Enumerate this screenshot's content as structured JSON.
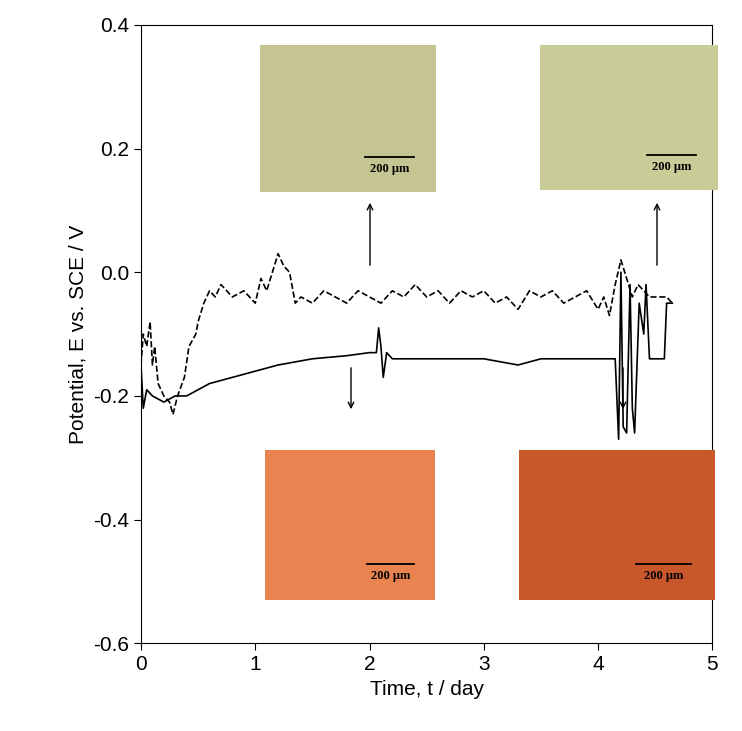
{
  "chart_data": {
    "type": "line",
    "x_label": "Time, t / day",
    "y_label": "Potential, E vs. SCE / V",
    "xlim": [
      0,
      5
    ],
    "xticks": [
      0,
      1,
      2,
      3,
      4,
      5
    ],
    "ylim": [
      -0.6,
      0.4
    ],
    "yticks": [
      -0.6,
      -0.4,
      -0.2,
      {
        "value": 0,
        "label": "0.0"
      },
      0.2,
      0.4
    ],
    "grid": false,
    "series": [
      {
        "type": "line",
        "line_style": "dashed",
        "color": "#000000",
        "x": [
          0.0,
          0.02,
          0.05,
          0.08,
          0.1,
          0.12,
          0.15,
          0.2,
          0.25,
          0.28,
          0.32,
          0.38,
          0.42,
          0.48,
          0.5,
          0.55,
          0.6,
          0.65,
          0.7,
          0.8,
          0.9,
          1.0,
          1.05,
          1.1,
          1.15,
          1.2,
          1.25,
          1.3,
          1.35,
          1.4,
          1.5,
          1.6,
          1.7,
          1.8,
          1.9,
          2.0,
          2.1,
          2.2,
          2.3,
          2.4,
          2.5,
          2.6,
          2.7,
          2.8,
          2.9,
          3.0,
          3.1,
          3.2,
          3.3,
          3.4,
          3.5,
          3.6,
          3.7,
          3.8,
          3.9,
          4.0,
          4.05,
          4.1,
          4.15,
          4.2,
          4.25,
          4.3,
          4.35,
          4.4,
          4.45,
          4.5,
          4.55,
          4.6,
          4.65
        ],
        "values": [
          -0.15,
          -0.1,
          -0.12,
          -0.08,
          -0.15,
          -0.12,
          -0.18,
          -0.2,
          -0.21,
          -0.23,
          -0.2,
          -0.17,
          -0.12,
          -0.1,
          -0.08,
          -0.05,
          -0.03,
          -0.04,
          -0.02,
          -0.04,
          -0.03,
          -0.05,
          -0.01,
          -0.03,
          0.0,
          0.03,
          0.01,
          0.0,
          -0.05,
          -0.04,
          -0.05,
          -0.03,
          -0.04,
          -0.05,
          -0.03,
          -0.04,
          -0.05,
          -0.03,
          -0.04,
          -0.02,
          -0.04,
          -0.03,
          -0.05,
          -0.03,
          -0.04,
          -0.03,
          -0.05,
          -0.04,
          -0.06,
          -0.03,
          -0.04,
          -0.03,
          -0.05,
          -0.04,
          -0.03,
          -0.06,
          -0.04,
          -0.07,
          -0.02,
          0.02,
          -0.01,
          -0.04,
          -0.02,
          -0.03,
          -0.04,
          -0.04,
          -0.04,
          -0.04,
          -0.05
        ]
      },
      {
        "type": "line",
        "line_style": "solid",
        "color": "#000000",
        "x": [
          0.0,
          0.02,
          0.05,
          0.1,
          0.2,
          0.3,
          0.4,
          0.5,
          0.6,
          0.8,
          1.0,
          1.2,
          1.5,
          1.8,
          2.0,
          2.06,
          2.08,
          2.1,
          2.12,
          2.15,
          2.2,
          2.5,
          2.8,
          3.0,
          3.3,
          3.5,
          3.8,
          4.0,
          4.1,
          4.15,
          4.18,
          4.2,
          4.22,
          4.25,
          4.28,
          4.3,
          4.32,
          4.36,
          4.4,
          4.42,
          4.45,
          4.5,
          4.55,
          4.58,
          4.6,
          4.65
        ],
        "values": [
          -0.15,
          -0.22,
          -0.19,
          -0.2,
          -0.21,
          -0.2,
          -0.2,
          -0.19,
          -0.18,
          -0.17,
          -0.16,
          -0.15,
          -0.14,
          -0.135,
          -0.13,
          -0.13,
          -0.09,
          -0.12,
          -0.17,
          -0.13,
          -0.14,
          -0.14,
          -0.14,
          -0.14,
          -0.15,
          -0.14,
          -0.14,
          -0.14,
          -0.14,
          -0.14,
          -0.27,
          0.0,
          -0.25,
          -0.26,
          -0.02,
          -0.22,
          -0.26,
          -0.05,
          -0.1,
          -0.02,
          -0.14,
          -0.14,
          -0.14,
          -0.14,
          -0.05,
          -0.05
        ]
      }
    ],
    "annotations": [
      {
        "text": "200 μm",
        "color": "#c4c592"
      },
      {
        "text": "200 μm",
        "color": "#c9cc96"
      },
      {
        "text": "200 μm",
        "color": "#e98450"
      },
      {
        "text": "200 μm",
        "color": "#c8582a"
      }
    ]
  }
}
